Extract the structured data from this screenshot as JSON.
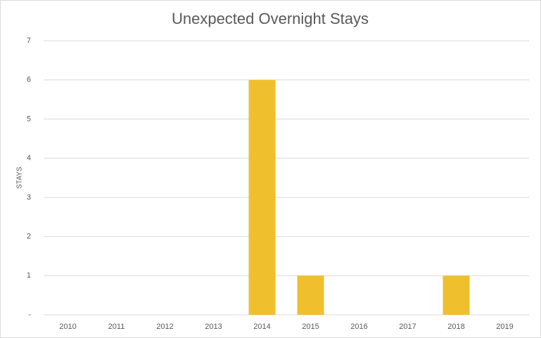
{
  "chart_data": {
    "type": "bar",
    "title": "Unexpected Overnight Stays",
    "y_label": "STAYS",
    "categories": [
      "2010",
      "2011",
      "2012",
      "2013",
      "2014",
      "2015",
      "2016",
      "2017",
      "2018",
      "2019"
    ],
    "values": [
      0,
      0,
      0,
      0,
      6,
      1,
      0,
      0,
      1,
      0
    ],
    "color": "#f0bf2e",
    "ylim": [
      0,
      7
    ],
    "yticks": [
      {
        "value": 0,
        "label": "-"
      },
      1,
      2,
      3,
      4,
      5,
      6,
      7
    ],
    "grid": true
  }
}
